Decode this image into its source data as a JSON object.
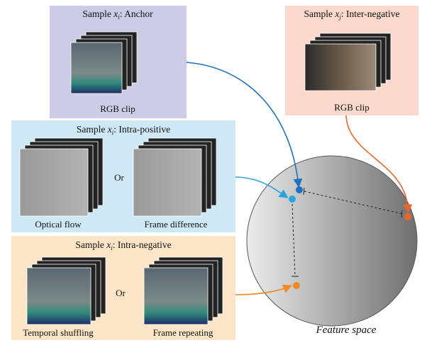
{
  "panels": [
    {
      "title": {
        "prefix": "Sample ",
        "var": "x",
        "sub": "i",
        "suffix": ": Anchor"
      },
      "labels": [
        "RGB clip"
      ]
    },
    {
      "title": {
        "prefix": "Sample ",
        "var": "x",
        "sub": "j",
        "suffix": ": Inter-negative"
      },
      "labels": [
        "RGB clip"
      ]
    },
    {
      "title": {
        "prefix": "Sample ",
        "var": "x",
        "sub": "i",
        "suffix": ": Intra-positive"
      },
      "labels": [
        "Optical flow",
        "Frame difference"
      ],
      "connector": "Or"
    },
    {
      "title": {
        "prefix": "Sample ",
        "var": "x",
        "sub": "i",
        "suffix": ": Intra-negative"
      },
      "labels": [
        "Temporal shuffling",
        "Frame repeating"
      ],
      "connector": "Or"
    }
  ],
  "feature_space": "Feature space"
}
